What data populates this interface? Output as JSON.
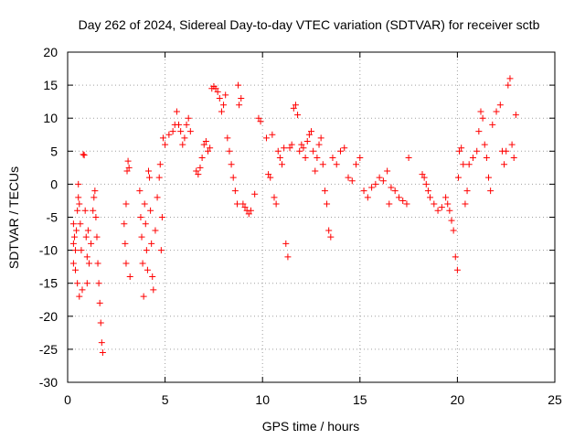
{
  "chart_data": {
    "type": "scatter",
    "title": "Day 262 of 2024, Sidereal Day-to-day VTEC variation (SDTVAR) for receiver sctb",
    "xlabel": "GPS time / hours",
    "ylabel": "SDTVAR / TECUs",
    "xlim": [
      0,
      25
    ],
    "ylim": [
      -30,
      20
    ],
    "x_ticks": [
      0,
      5,
      10,
      15,
      20,
      25
    ],
    "y_ticks": [
      -30,
      -25,
      -20,
      -15,
      -10,
      -5,
      0,
      5,
      10,
      15,
      20
    ],
    "grid": true,
    "marker": "+",
    "series": [
      {
        "name": "SDTVAR",
        "color": "#ff0000",
        "points": [
          [
            0.3,
            -6
          ],
          [
            0.3,
            -9
          ],
          [
            0.3,
            -12
          ],
          [
            0.35,
            -8
          ],
          [
            0.4,
            -10
          ],
          [
            0.4,
            -13
          ],
          [
            0.45,
            -7
          ],
          [
            0.5,
            -4
          ],
          [
            0.5,
            -15
          ],
          [
            0.55,
            -2
          ],
          [
            0.55,
            0
          ],
          [
            0.6,
            -17
          ],
          [
            0.6,
            -3
          ],
          [
            0.65,
            -6
          ],
          [
            0.7,
            -10
          ],
          [
            0.75,
            -16
          ],
          [
            0.8,
            4.5
          ],
          [
            0.85,
            4.4
          ],
          [
            0.9,
            -4
          ],
          [
            0.95,
            -8
          ],
          [
            1.0,
            -11
          ],
          [
            1.0,
            -15
          ],
          [
            1.05,
            -7
          ],
          [
            1.1,
            -12
          ],
          [
            1.2,
            -9
          ],
          [
            1.3,
            -4
          ],
          [
            1.35,
            -2
          ],
          [
            1.4,
            -1
          ],
          [
            1.45,
            -5
          ],
          [
            1.5,
            -8
          ],
          [
            1.55,
            -12
          ],
          [
            1.6,
            -15
          ],
          [
            1.65,
            -18
          ],
          [
            1.7,
            -21
          ],
          [
            1.75,
            -24
          ],
          [
            1.8,
            -25.5
          ],
          [
            2.9,
            -6
          ],
          [
            2.95,
            -9
          ],
          [
            3.0,
            -12
          ],
          [
            3.0,
            -3
          ],
          [
            3.05,
            2
          ],
          [
            3.1,
            3.5
          ],
          [
            3.15,
            2.5
          ],
          [
            3.2,
            -14
          ],
          [
            3.7,
            -1
          ],
          [
            3.75,
            -5
          ],
          [
            3.8,
            -8
          ],
          [
            3.85,
            -12
          ],
          [
            3.9,
            -17
          ],
          [
            3.95,
            -3
          ],
          [
            4.0,
            -6
          ],
          [
            4.05,
            -10
          ],
          [
            4.1,
            -13
          ],
          [
            4.15,
            2
          ],
          [
            4.2,
            1
          ],
          [
            4.25,
            -4
          ],
          [
            4.3,
            -9
          ],
          [
            4.35,
            -14
          ],
          [
            4.4,
            -16
          ],
          [
            4.5,
            -7
          ],
          [
            4.6,
            -2
          ],
          [
            4.7,
            1
          ],
          [
            4.75,
            3
          ],
          [
            4.8,
            -10
          ],
          [
            4.85,
            -5
          ],
          [
            4.9,
            7
          ],
          [
            5.0,
            6
          ],
          [
            5.2,
            7.5
          ],
          [
            5.4,
            8
          ],
          [
            5.5,
            9
          ],
          [
            5.6,
            11
          ],
          [
            5.7,
            9
          ],
          [
            5.8,
            8
          ],
          [
            5.9,
            6
          ],
          [
            6.0,
            7
          ],
          [
            6.1,
            9
          ],
          [
            6.2,
            10
          ],
          [
            6.3,
            8
          ],
          [
            6.6,
            2
          ],
          [
            6.7,
            1.5
          ],
          [
            6.8,
            2.5
          ],
          [
            6.9,
            4
          ],
          [
            7.0,
            6
          ],
          [
            7.1,
            6.5
          ],
          [
            7.2,
            5
          ],
          [
            7.3,
            5.5
          ],
          [
            7.4,
            14.5
          ],
          [
            7.5,
            14.8
          ],
          [
            7.6,
            14.5
          ],
          [
            7.7,
            14
          ],
          [
            7.8,
            13
          ],
          [
            7.9,
            11
          ],
          [
            8.0,
            12
          ],
          [
            8.1,
            13.5
          ],
          [
            8.2,
            7
          ],
          [
            8.3,
            5
          ],
          [
            8.4,
            3
          ],
          [
            8.5,
            1
          ],
          [
            8.6,
            -1
          ],
          [
            8.7,
            -3
          ],
          [
            8.75,
            15
          ],
          [
            8.8,
            12
          ],
          [
            8.9,
            13
          ],
          [
            9.0,
            -3
          ],
          [
            9.1,
            -3.5
          ],
          [
            9.2,
            -4
          ],
          [
            9.3,
            -4.5
          ],
          [
            9.4,
            -4
          ],
          [
            9.6,
            -1.5
          ],
          [
            9.8,
            10
          ],
          [
            9.9,
            9.5
          ],
          [
            10.2,
            7
          ],
          [
            10.3,
            1.5
          ],
          [
            10.4,
            1
          ],
          [
            10.5,
            7.5
          ],
          [
            10.6,
            -2
          ],
          [
            10.7,
            -3
          ],
          [
            10.8,
            5
          ],
          [
            10.9,
            4
          ],
          [
            11.0,
            3
          ],
          [
            11.1,
            5.5
          ],
          [
            11.2,
            -9
          ],
          [
            11.3,
            -11
          ],
          [
            11.4,
            5.5
          ],
          [
            11.5,
            6
          ],
          [
            11.6,
            11.5
          ],
          [
            11.7,
            12
          ],
          [
            11.8,
            10.5
          ],
          [
            11.9,
            5
          ],
          [
            12.0,
            6
          ],
          [
            12.1,
            5.5
          ],
          [
            12.2,
            4
          ],
          [
            12.3,
            6.5
          ],
          [
            12.4,
            7.5
          ],
          [
            12.5,
            8
          ],
          [
            12.6,
            5
          ],
          [
            12.7,
            2
          ],
          [
            12.8,
            4
          ],
          [
            12.9,
            6
          ],
          [
            13.0,
            7
          ],
          [
            13.1,
            3
          ],
          [
            13.2,
            -1
          ],
          [
            13.3,
            -3
          ],
          [
            13.4,
            -7
          ],
          [
            13.5,
            -8
          ],
          [
            13.6,
            4
          ],
          [
            13.8,
            3
          ],
          [
            14.0,
            5
          ],
          [
            14.2,
            5.5
          ],
          [
            14.4,
            1
          ],
          [
            14.6,
            0.5
          ],
          [
            14.8,
            3
          ],
          [
            15.0,
            4
          ],
          [
            15.2,
            -1
          ],
          [
            15.4,
            -2
          ],
          [
            15.6,
            -0.5
          ],
          [
            15.8,
            0
          ],
          [
            16.0,
            1
          ],
          [
            16.2,
            0.5
          ],
          [
            16.4,
            2
          ],
          [
            16.5,
            -3
          ],
          [
            16.6,
            -0.5
          ],
          [
            16.8,
            -1
          ],
          [
            17.0,
            -2
          ],
          [
            17.2,
            -2.5
          ],
          [
            17.4,
            -3
          ],
          [
            17.5,
            4
          ],
          [
            18.2,
            1.5
          ],
          [
            18.3,
            1
          ],
          [
            18.4,
            0
          ],
          [
            18.5,
            -1
          ],
          [
            18.6,
            -2
          ],
          [
            18.8,
            -3
          ],
          [
            19.0,
            -4
          ],
          [
            19.2,
            -3.5
          ],
          [
            19.4,
            -2
          ],
          [
            19.5,
            -3
          ],
          [
            19.6,
            -4
          ],
          [
            19.7,
            -5.5
          ],
          [
            19.8,
            -7
          ],
          [
            19.9,
            -11
          ],
          [
            20.0,
            -13
          ],
          [
            20.05,
            1
          ],
          [
            20.1,
            5
          ],
          [
            20.2,
            5.5
          ],
          [
            20.3,
            3
          ],
          [
            20.4,
            -3
          ],
          [
            20.5,
            -1
          ],
          [
            20.6,
            3
          ],
          [
            20.8,
            4
          ],
          [
            21.0,
            5
          ],
          [
            21.1,
            8
          ],
          [
            21.2,
            11
          ],
          [
            21.3,
            10
          ],
          [
            21.4,
            6
          ],
          [
            21.5,
            4
          ],
          [
            21.6,
            1
          ],
          [
            21.7,
            -1
          ],
          [
            21.8,
            9
          ],
          [
            22.0,
            11
          ],
          [
            22.2,
            12
          ],
          [
            22.3,
            5
          ],
          [
            22.4,
            3
          ],
          [
            22.5,
            5
          ],
          [
            22.6,
            15
          ],
          [
            22.7,
            16
          ],
          [
            22.8,
            6
          ],
          [
            22.9,
            4
          ],
          [
            23.0,
            10.5
          ]
        ]
      }
    ]
  }
}
